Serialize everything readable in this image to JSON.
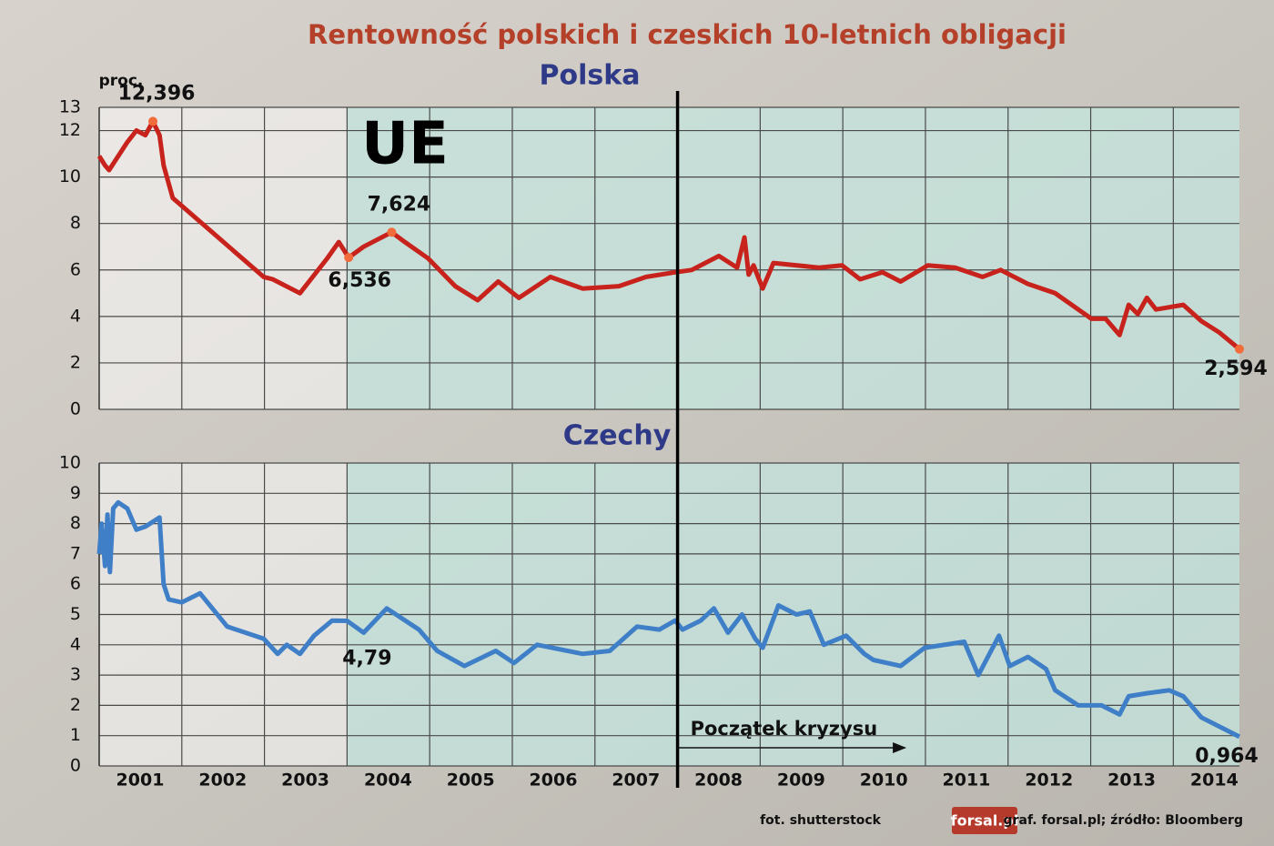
{
  "title": "Rentowność polskich i czeskich 10-letnich obligacji",
  "chart_data": [
    {
      "type": "line",
      "title": "Polska",
      "ylabel": "proc.",
      "annotation": "UE",
      "xlim": [
        2001,
        2014.8
      ],
      "xticks": [
        2002,
        2003,
        2004,
        2005,
        2006,
        2007,
        2008,
        2009,
        2010,
        2011,
        2012,
        2013,
        2014
      ],
      "ylim": [
        0,
        13
      ],
      "yticks": [
        0,
        2,
        4,
        6,
        8,
        10,
        12,
        13
      ],
      "grid": true,
      "shade_from": 2004,
      "event_x": 2008,
      "x": [
        2001.0,
        2001.07,
        2001.12,
        2001.23,
        2001.34,
        2001.45,
        2001.56,
        2001.65,
        2001.73,
        2001.78,
        2001.89,
        2002.99,
        2003.1,
        2003.43,
        2003.76,
        2003.9,
        2004.02,
        2004.2,
        2004.54,
        2004.7,
        2004.98,
        2005.31,
        2005.58,
        2005.83,
        2006.08,
        2006.46,
        2006.85,
        2007.29,
        2007.62,
        2007.97,
        2008.17,
        2008.5,
        2008.72,
        2008.81,
        2008.86,
        2008.92,
        2009.03,
        2009.16,
        2009.71,
        2009.99,
        2010.21,
        2010.48,
        2010.7,
        2011.03,
        2011.36,
        2011.69,
        2011.91,
        2012.24,
        2012.57,
        2012.85,
        2013.01,
        2013.18,
        2013.35,
        2013.46,
        2013.57,
        2013.68,
        2013.79,
        2014.12,
        2014.34,
        2014.56,
        2014.8
      ],
      "series": [
        {
          "color": "#c8221c",
          "values": [
            10.9,
            10.5,
            10.3,
            10.9,
            11.5,
            12.0,
            11.8,
            12.396,
            11.8,
            10.5,
            9.1,
            5.7,
            5.6,
            5.0,
            6.5,
            7.2,
            6.536,
            7.0,
            7.624,
            7.2,
            6.5,
            5.3,
            4.7,
            5.5,
            4.8,
            5.7,
            5.2,
            5.3,
            5.7,
            5.9,
            6.0,
            6.6,
            6.1,
            7.4,
            5.8,
            6.2,
            5.2,
            6.3,
            6.1,
            6.2,
            5.6,
            5.9,
            5.5,
            6.2,
            6.1,
            5.7,
            6.0,
            5.4,
            5.0,
            4.3,
            3.9,
            3.9,
            3.2,
            4.5,
            4.1,
            4.8,
            4.3,
            4.5,
            3.8,
            3.3,
            2.594
          ]
        }
      ],
      "highlights": [
        {
          "x": 2001.65,
          "value": 12.396,
          "label": "12,396"
        },
        {
          "x": 2004.02,
          "value": 6.536,
          "label": "6,536"
        },
        {
          "x": 2004.54,
          "value": 7.624,
          "label": "7,624"
        },
        {
          "x": 2014.8,
          "value": 2.594,
          "label": "2,594"
        }
      ]
    },
    {
      "type": "line",
      "title": "Czechy",
      "annotation": "Początek kryzysu",
      "xlim": [
        2001,
        2014.8
      ],
      "xticks": [
        2001,
        2002,
        2003,
        2004,
        2005,
        2006,
        2007,
        2008,
        2009,
        2010,
        2011,
        2012,
        2013,
        2014
      ],
      "ylim": [
        0,
        10
      ],
      "yticks": [
        0,
        1,
        2,
        3,
        4,
        5,
        6,
        7,
        8,
        9,
        10
      ],
      "grid": true,
      "shade_from": 2004,
      "event_x": 2008,
      "x": [
        2001.0,
        2001.03,
        2001.07,
        2001.1,
        2001.13,
        2001.17,
        2001.23,
        2001.34,
        2001.45,
        2001.56,
        2001.73,
        2001.78,
        2001.84,
        2002.0,
        2002.22,
        2002.55,
        2002.99,
        2003.16,
        2003.27,
        2003.43,
        2003.6,
        2003.82,
        2004.0,
        2004.2,
        2004.48,
        2004.87,
        2005.09,
        2005.42,
        2005.8,
        2006.02,
        2006.3,
        2006.85,
        2007.18,
        2007.51,
        2007.78,
        2007.97,
        2008.06,
        2008.28,
        2008.44,
        2008.61,
        2008.78,
        2008.94,
        2009.03,
        2009.22,
        2009.44,
        2009.6,
        2009.77,
        2010.04,
        2010.26,
        2010.37,
        2010.7,
        2010.99,
        2011.47,
        2011.64,
        2011.89,
        2012.02,
        2012.24,
        2012.46,
        2012.57,
        2012.85,
        2013.13,
        2013.35,
        2013.46,
        2013.68,
        2013.95,
        2014.12,
        2014.34,
        2014.8
      ],
      "series": [
        {
          "color": "#3f7fc8",
          "values": [
            7.0,
            8.0,
            6.6,
            8.3,
            6.4,
            8.5,
            8.7,
            8.5,
            7.8,
            7.9,
            8.2,
            6.0,
            5.5,
            5.4,
            5.7,
            4.6,
            4.2,
            3.7,
            4.0,
            3.7,
            4.3,
            4.8,
            4.79,
            4.4,
            5.2,
            4.5,
            3.8,
            3.3,
            3.8,
            3.4,
            4.0,
            3.7,
            3.8,
            4.6,
            4.5,
            4.8,
            4.5,
            4.8,
            5.2,
            4.4,
            5.0,
            4.2,
            3.9,
            5.3,
            5.0,
            5.1,
            4.0,
            4.3,
            3.7,
            3.5,
            3.3,
            3.9,
            4.1,
            3.0,
            4.3,
            3.3,
            3.6,
            3.2,
            2.5,
            2.0,
            2.0,
            1.7,
            2.3,
            2.4,
            2.5,
            2.3,
            1.6,
            0.964
          ]
        }
      ],
      "highlights": [
        {
          "x": 2004.0,
          "value": 4.79,
          "label": "4,79"
        },
        {
          "x": 2014.8,
          "value": 0.964,
          "label": "0,964"
        }
      ]
    }
  ],
  "footer": {
    "photo": "fot. shutterstock",
    "logo": "forsal.pl",
    "source": "graf. forsal.pl;  źródło: Bloomberg"
  }
}
